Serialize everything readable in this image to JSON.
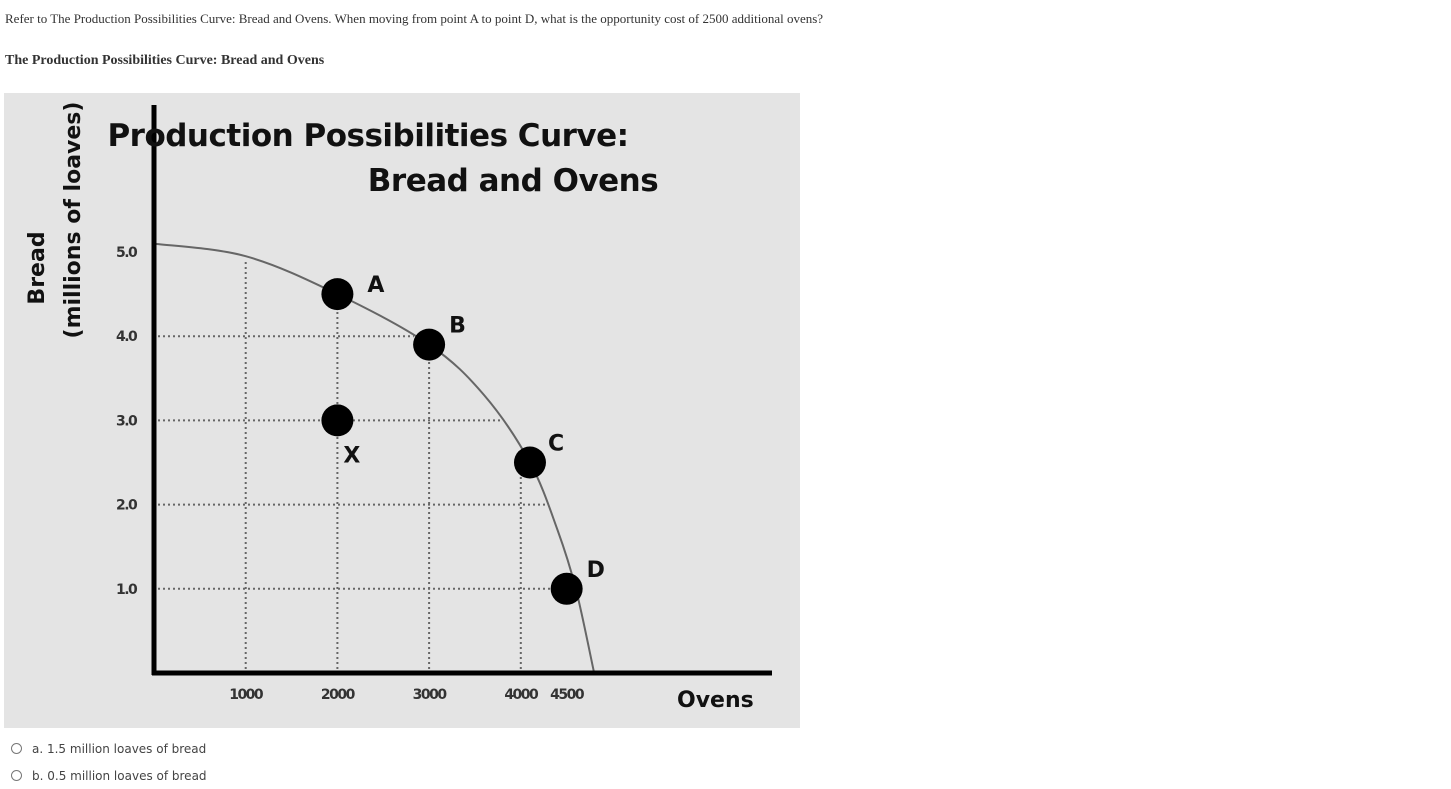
{
  "question": {
    "text": "Refer to The Production Possibilities Curve: Bread and Ovens. When moving from point A to point D, what is the opportunity cost of 2500 additional ovens?"
  },
  "figure": {
    "caption": "The Production Possibilities Curve: Bread and Ovens"
  },
  "chart_data": {
    "type": "line",
    "title_lines": [
      "Production Possibilities Curve:",
      "Bread and Ovens"
    ],
    "ylabel_lines": [
      "Bread",
      "(millions of loaves)"
    ],
    "xlabel": "Ovens",
    "x_ticks": [
      {
        "value": 1000,
        "label": "1000"
      },
      {
        "value": 2000,
        "label": "2000"
      },
      {
        "value": 3000,
        "label": "3000"
      },
      {
        "value": 4000,
        "label": "4000"
      },
      {
        "value": 4500,
        "label": "4500"
      }
    ],
    "y_ticks": [
      {
        "value": 1.0,
        "label": "1.0"
      },
      {
        "value": 2.0,
        "label": "2.0"
      },
      {
        "value": 3.0,
        "label": "3.0"
      },
      {
        "value": 4.0,
        "label": "4.0"
      },
      {
        "value": 5.0,
        "label": "5.0"
      }
    ],
    "xlim": [
      0,
      6500
    ],
    "ylim": [
      0,
      6.8
    ],
    "curve": [
      {
        "x": 0,
        "y": 5.1
      },
      {
        "x": 1000,
        "y": 4.95
      },
      {
        "x": 2000,
        "y": 4.5
      },
      {
        "x": 3000,
        "y": 3.9
      },
      {
        "x": 3600,
        "y": 3.3
      },
      {
        "x": 4100,
        "y": 2.5
      },
      {
        "x": 4400,
        "y": 1.7
      },
      {
        "x": 4600,
        "y": 1.0
      },
      {
        "x": 4800,
        "y": 0
      }
    ],
    "points": [
      {
        "label": "A",
        "x": 2000,
        "y": 4.5
      },
      {
        "label": "B",
        "x": 3000,
        "y": 3.9
      },
      {
        "label": "C",
        "x": 4100,
        "y": 2.5
      },
      {
        "label": "D",
        "x": 4500,
        "y": 1.0
      },
      {
        "label": "X",
        "x": 2000,
        "y": 3.0
      }
    ],
    "grid": true
  },
  "options": [
    {
      "label": "a. 1.5 million loaves of bread"
    },
    {
      "label": "b. 0.5 million loaves of bread"
    }
  ]
}
